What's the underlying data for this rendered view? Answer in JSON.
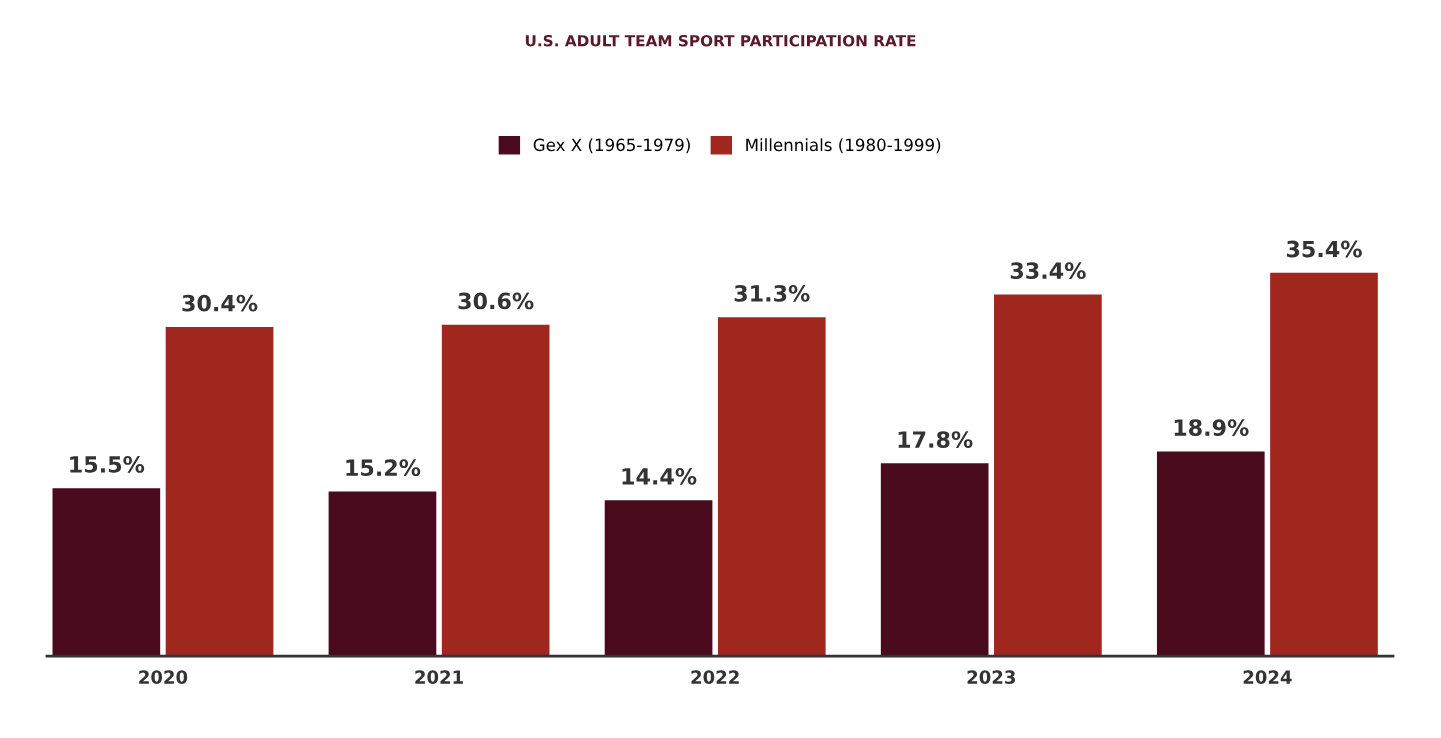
{
  "chart_data": {
    "type": "bar",
    "title": "U.S. ADULT TEAM SPORT PARTICIPATION RATE",
    "categories": [
      "2020",
      "2021",
      "2022",
      "2023",
      "2024"
    ],
    "series": [
      {
        "name": "Gex X (1965-1979)",
        "color": "#4a0a1e",
        "values": [
          15.5,
          15.2,
          14.4,
          17.8,
          18.9
        ],
        "value_labels": [
          "15.5%",
          "15.2%",
          "14.4%",
          "17.8%",
          "18.9%"
        ]
      },
      {
        "name": "Millennials (1980-1999)",
        "color": "#a0271e",
        "values": [
          30.4,
          30.6,
          31.3,
          33.4,
          35.4
        ],
        "value_labels": [
          "30.4%",
          "30.6%",
          "31.3%",
          "33.4%",
          "35.4%"
        ]
      }
    ],
    "legend": "top",
    "grid": false,
    "tick_labels": "x"
  }
}
